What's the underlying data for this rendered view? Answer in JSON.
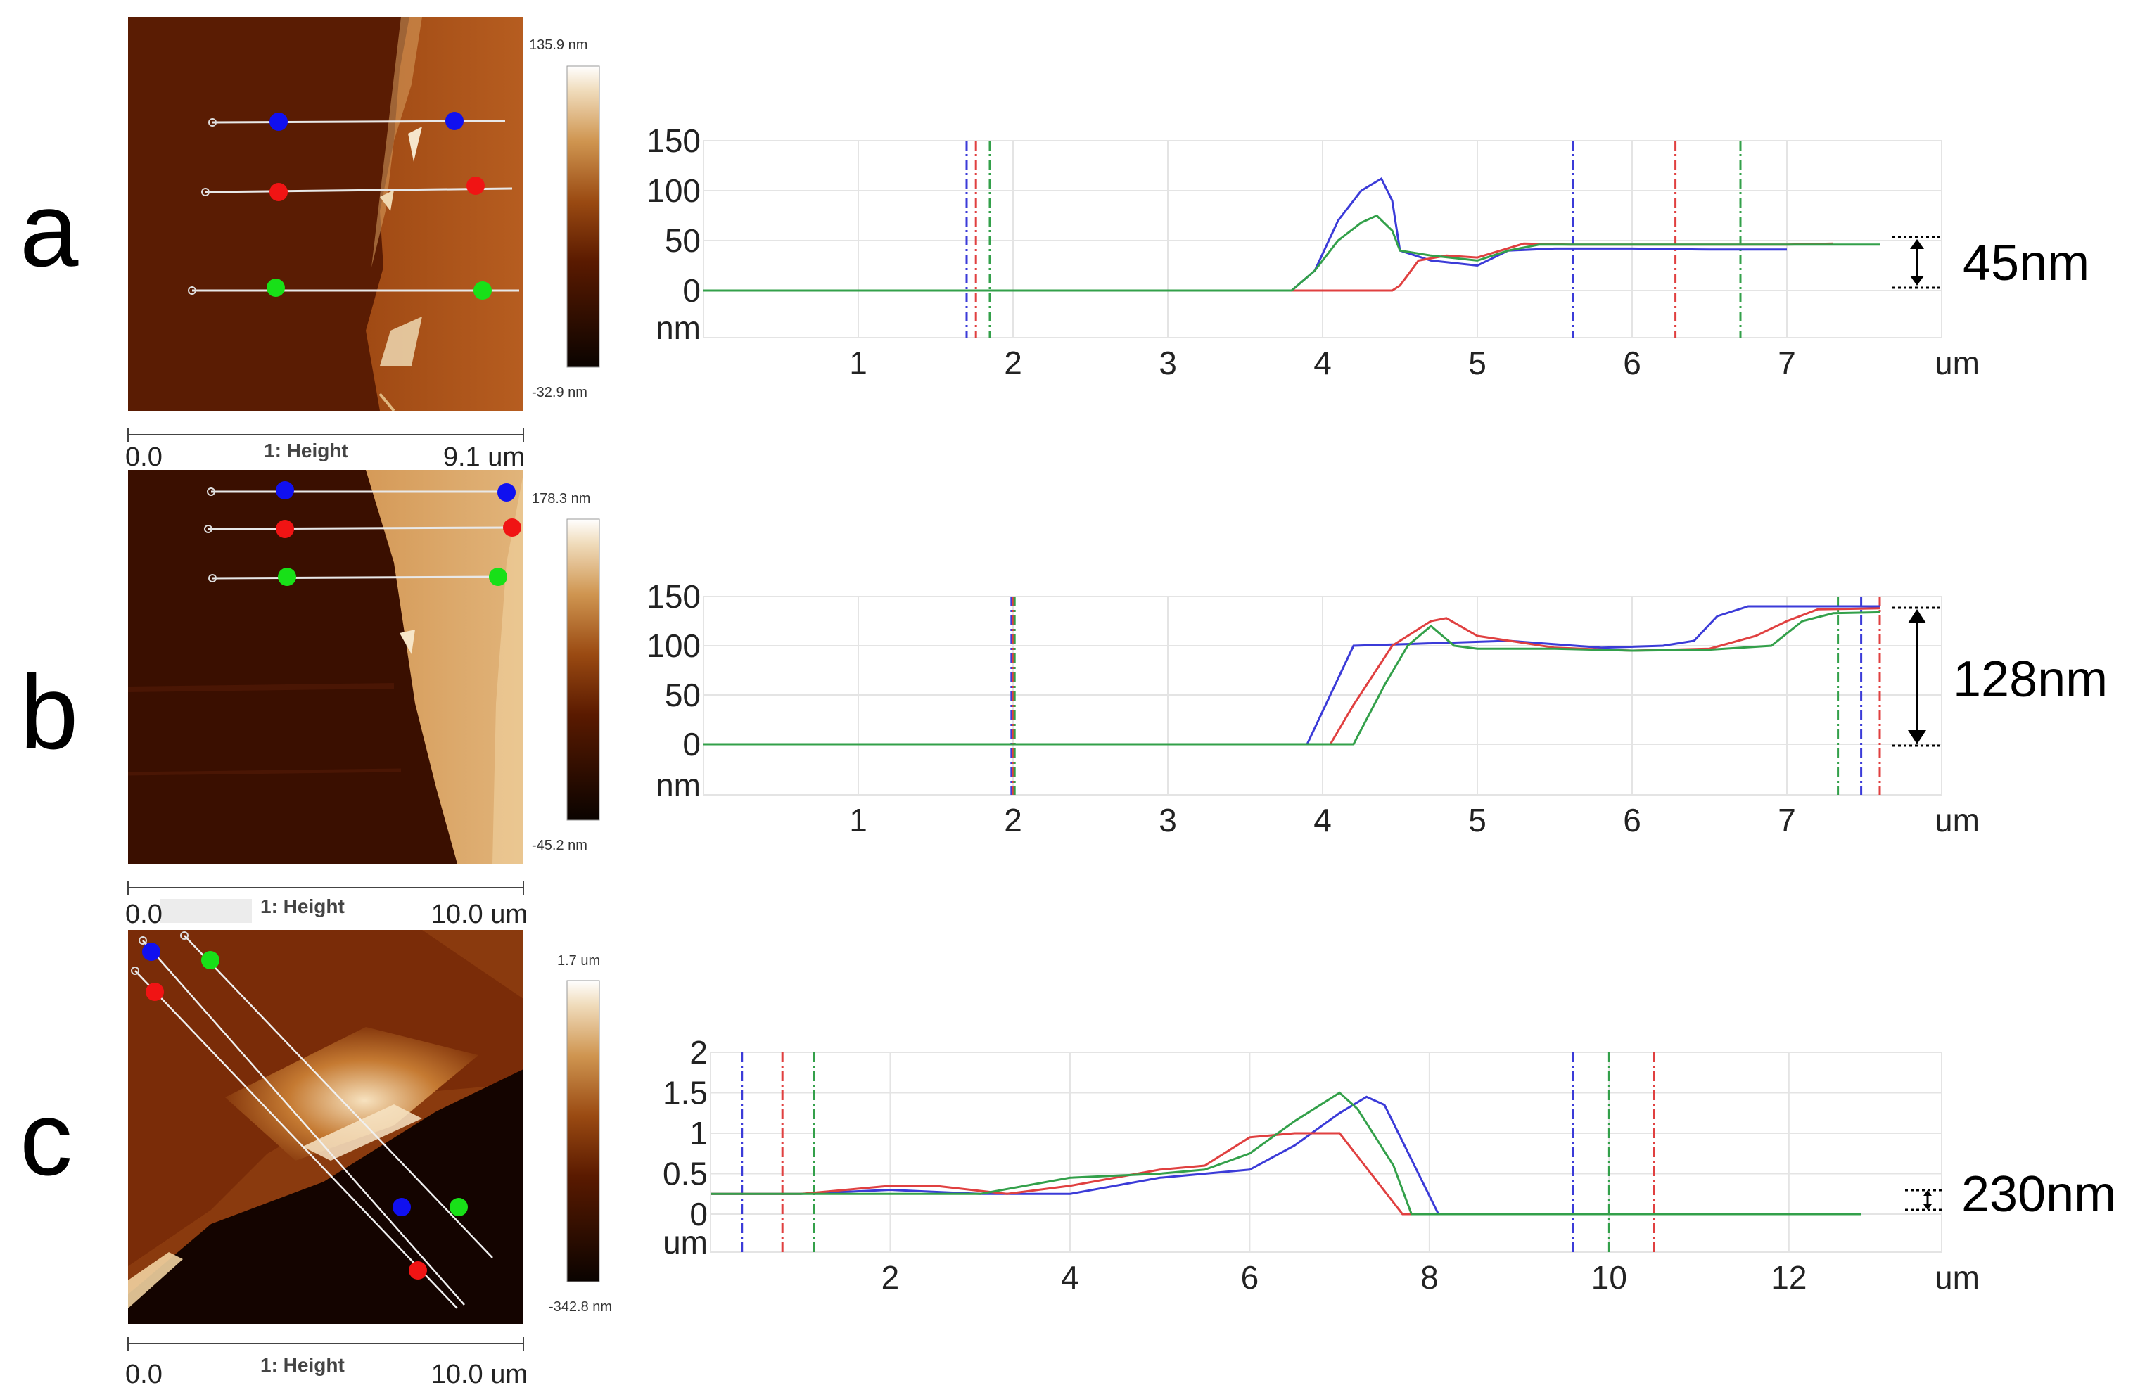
{
  "colors": {
    "blue": "#3b3bd8",
    "red": "#e04040",
    "green": "#33a04a",
    "marker_blue": "#1010f0",
    "marker_red": "#f01414",
    "marker_green": "#18e018",
    "grid": "#e4e4e4",
    "axis_text": "#222222"
  },
  "panels": [
    {
      "letter": "a",
      "afm": {
        "max_label": "135.9 nm",
        "min_label": "-32.9 nm",
        "scale_left": "0.0",
        "scale_caption": "1: Height",
        "scale_right": "9.1 um"
      },
      "annotation": "45nm"
    },
    {
      "letter": "b",
      "afm": {
        "max_label": "178.3 nm",
        "min_label": "-45.2 nm",
        "scale_left": "0.0",
        "scale_caption": "1: Height",
        "scale_right": "10.0 um"
      },
      "annotation": "128nm"
    },
    {
      "letter": "c",
      "afm": {
        "max_label": "1.7 um",
        "min_label": "-342.8 nm",
        "scale_left": "0.0",
        "scale_caption": "1: Height",
        "scale_right": "10.0 um"
      },
      "annotation": "230nm"
    }
  ],
  "chart_data": [
    {
      "type": "line",
      "xlabel": "um",
      "ylabel": "nm",
      "xlim": [
        0,
        8.0
      ],
      "ylim": [
        -45,
        150
      ],
      "x_ticks": [
        1,
        2,
        3,
        4,
        5,
        6,
        7
      ],
      "y_ticks": [
        0,
        50,
        100,
        150
      ],
      "series": [
        {
          "color": "blue",
          "points": [
            [
              0,
              0
            ],
            [
              3.8,
              0
            ],
            [
              3.95,
              20
            ],
            [
              4.1,
              70
            ],
            [
              4.25,
              100
            ],
            [
              4.38,
              112
            ],
            [
              4.45,
              90
            ],
            [
              4.5,
              40
            ],
            [
              4.7,
              30
            ],
            [
              5.0,
              25
            ],
            [
              5.2,
              40
            ],
            [
              5.5,
              42
            ],
            [
              6.0,
              42
            ],
            [
              6.5,
              41
            ],
            [
              7.0,
              41
            ]
          ]
        },
        {
          "color": "red",
          "points": [
            [
              0,
              0
            ],
            [
              4.45,
              0
            ],
            [
              4.5,
              5
            ],
            [
              4.62,
              30
            ],
            [
              4.8,
              35
            ],
            [
              5.0,
              33
            ],
            [
              5.15,
              40
            ],
            [
              5.3,
              47
            ],
            [
              5.6,
              46
            ],
            [
              6.0,
              46
            ],
            [
              6.5,
              46
            ],
            [
              7.0,
              46
            ],
            [
              7.3,
              47
            ]
          ]
        },
        {
          "color": "green",
          "points": [
            [
              0,
              0
            ],
            [
              3.8,
              0
            ],
            [
              3.95,
              20
            ],
            [
              4.1,
              50
            ],
            [
              4.25,
              68
            ],
            [
              4.35,
              75
            ],
            [
              4.45,
              60
            ],
            [
              4.5,
              40
            ],
            [
              4.7,
              35
            ],
            [
              5.0,
              30
            ],
            [
              5.2,
              40
            ],
            [
              5.4,
              46
            ],
            [
              6.0,
              46
            ],
            [
              7.0,
              46
            ],
            [
              7.6,
              46
            ]
          ]
        }
      ],
      "cursor_lines": [
        {
          "color": "blue",
          "x": 1.7
        },
        {
          "color": "red",
          "x": 1.76
        },
        {
          "color": "green",
          "x": 1.85
        },
        {
          "color": "blue",
          "x": 5.62
        },
        {
          "color": "red",
          "x": 6.28
        },
        {
          "color": "green",
          "x": 6.7
        }
      ]
    },
    {
      "type": "line",
      "xlabel": "um",
      "ylabel": "nm",
      "xlim": [
        0,
        8.0
      ],
      "ylim": [
        -45,
        150
      ],
      "x_ticks": [
        1,
        2,
        3,
        4,
        5,
        6,
        7
      ],
      "y_ticks": [
        0,
        50,
        100,
        150
      ],
      "series": [
        {
          "color": "blue",
          "points": [
            [
              0,
              0
            ],
            [
              3.9,
              0
            ],
            [
              4.05,
              50
            ],
            [
              4.2,
              100
            ],
            [
              4.6,
              102
            ],
            [
              5.2,
              105
            ],
            [
              5.8,
              98
            ],
            [
              6.2,
              100
            ],
            [
              6.4,
              105
            ],
            [
              6.55,
              130
            ],
            [
              6.75,
              140
            ],
            [
              7.6,
              140
            ]
          ]
        },
        {
          "color": "red",
          "points": [
            [
              0,
              0
            ],
            [
              4.05,
              0
            ],
            [
              4.2,
              40
            ],
            [
              4.45,
              100
            ],
            [
              4.7,
              125
            ],
            [
              4.8,
              128
            ],
            [
              5.0,
              110
            ],
            [
              5.5,
              98
            ],
            [
              6.0,
              95
            ],
            [
              6.5,
              97
            ],
            [
              6.8,
              110
            ],
            [
              7.0,
              125
            ],
            [
              7.2,
              137
            ],
            [
              7.6,
              138
            ]
          ]
        },
        {
          "color": "green",
          "points": [
            [
              0,
              0
            ],
            [
              4.2,
              0
            ],
            [
              4.4,
              60
            ],
            [
              4.55,
              100
            ],
            [
              4.7,
              120
            ],
            [
              4.85,
              100
            ],
            [
              5.0,
              97
            ],
            [
              5.5,
              97
            ],
            [
              6.0,
              95
            ],
            [
              6.5,
              96
            ],
            [
              6.9,
              100
            ],
            [
              7.1,
              125
            ],
            [
              7.3,
              133
            ],
            [
              7.6,
              134
            ]
          ]
        }
      ],
      "cursor_lines": [
        {
          "color": "blue",
          "x": 1.99
        },
        {
          "color": "red",
          "x": 2.0
        },
        {
          "color": "green",
          "x": 2.01
        },
        {
          "color": "green",
          "x": 7.33
        },
        {
          "color": "blue",
          "x": 7.48
        },
        {
          "color": "red",
          "x": 7.6
        }
      ]
    },
    {
      "type": "line",
      "xlabel": "um",
      "ylabel": "um",
      "xlim": [
        0,
        13.7
      ],
      "ylim": [
        -0.4,
        2.0
      ],
      "x_ticks": [
        2,
        4,
        6,
        8,
        10,
        12
      ],
      "y_ticks": [
        0,
        0.5,
        1,
        1.5,
        2
      ],
      "series": [
        {
          "color": "blue",
          "points": [
            [
              0,
              0.25
            ],
            [
              1.0,
              0.25
            ],
            [
              2.0,
              0.3
            ],
            [
              3.0,
              0.25
            ],
            [
              4.0,
              0.25
            ],
            [
              5.0,
              0.45
            ],
            [
              6.0,
              0.55
            ],
            [
              6.5,
              0.85
            ],
            [
              7.0,
              1.25
            ],
            [
              7.3,
              1.45
            ],
            [
              7.5,
              1.35
            ],
            [
              8.1,
              0.0
            ],
            [
              12.8,
              0.0
            ]
          ]
        },
        {
          "color": "red",
          "points": [
            [
              0,
              0.25
            ],
            [
              1.0,
              0.25
            ],
            [
              2.0,
              0.35
            ],
            [
              2.5,
              0.35
            ],
            [
              3.3,
              0.25
            ],
            [
              4.0,
              0.35
            ],
            [
              5.0,
              0.55
            ],
            [
              5.5,
              0.6
            ],
            [
              6.0,
              0.95
            ],
            [
              6.5,
              1.0
            ],
            [
              7.0,
              1.0
            ],
            [
              7.7,
              0.0
            ],
            [
              12.8,
              0.0
            ]
          ]
        },
        {
          "color": "green",
          "points": [
            [
              0,
              0.25
            ],
            [
              1.0,
              0.25
            ],
            [
              2.0,
              0.25
            ],
            [
              3.0,
              0.25
            ],
            [
              4.0,
              0.45
            ],
            [
              5.0,
              0.5
            ],
            [
              5.5,
              0.55
            ],
            [
              6.0,
              0.75
            ],
            [
              6.5,
              1.15
            ],
            [
              7.0,
              1.5
            ],
            [
              7.2,
              1.3
            ],
            [
              7.6,
              0.6
            ],
            [
              7.8,
              0.0
            ],
            [
              12.8,
              0.0
            ]
          ]
        }
      ],
      "cursor_lines": [
        {
          "color": "blue",
          "x": 0.35
        },
        {
          "color": "red",
          "x": 0.8
        },
        {
          "color": "green",
          "x": 1.15
        },
        {
          "color": "blue",
          "x": 9.6
        },
        {
          "color": "green",
          "x": 10.0
        },
        {
          "color": "red",
          "x": 10.5
        }
      ]
    }
  ]
}
